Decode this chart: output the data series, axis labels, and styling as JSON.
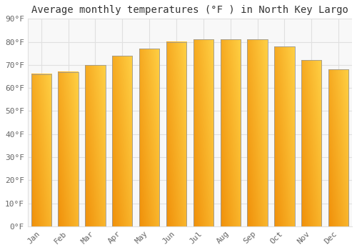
{
  "title": "Average monthly temperatures (°F ) in North Key Largo",
  "months": [
    "Jan",
    "Feb",
    "Mar",
    "Apr",
    "May",
    "Jun",
    "Jul",
    "Aug",
    "Sep",
    "Oct",
    "Nov",
    "Dec"
  ],
  "values": [
    66,
    67,
    70,
    74,
    77,
    80,
    81,
    81,
    81,
    78,
    72,
    68
  ],
  "bar_color_light": "#FFD044",
  "bar_color_dark": "#F0900A",
  "bar_edge_color": "#999999",
  "background_color": "#FFFFFF",
  "plot_bg_color": "#F8F8F8",
  "ylim": [
    0,
    90
  ],
  "yticks": [
    0,
    10,
    20,
    30,
    40,
    50,
    60,
    70,
    80,
    90
  ],
  "ytick_labels": [
    "0°F",
    "10°F",
    "20°F",
    "30°F",
    "40°F",
    "50°F",
    "60°F",
    "70°F",
    "80°F",
    "90°F"
  ],
  "grid_color": "#E0E0E0",
  "tick_color": "#666666",
  "title_fontsize": 10,
  "tick_fontsize": 8,
  "font_family": "monospace"
}
